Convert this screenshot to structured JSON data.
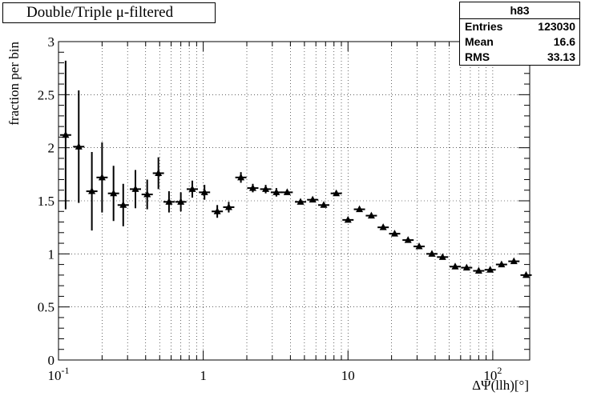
{
  "chart_data": {
    "type": "scatter",
    "title": "Double/Triple μ-filtered",
    "xlabel": "ΔΨ(llh)[°]",
    "ylabel": "fraction per bin",
    "xscale": "log",
    "xlim": [
      0.1,
      180
    ],
    "ylim": [
      0,
      3
    ],
    "grid": true,
    "marker": "filled-triangle",
    "x_ticks": [
      "10",
      "1",
      "10",
      "10"
    ],
    "x_tick_exponents": [
      "-1",
      "",
      "",
      "2"
    ],
    "y_ticks": [
      "0",
      "0.5",
      "1",
      "1.5",
      "2",
      "2.5",
      "3"
    ],
    "series": [
      {
        "x": [
          0.112,
          0.138,
          0.17,
          0.2,
          0.24,
          0.28,
          0.34,
          0.41,
          0.49,
          0.58,
          0.7,
          0.84,
          1.02,
          1.25,
          1.5,
          1.82,
          2.2,
          2.7,
          3.2,
          3.8,
          4.7,
          5.7,
          6.8,
          8.3,
          10,
          12,
          14.5,
          17.5,
          21,
          26,
          31,
          38,
          45,
          55,
          66,
          80,
          96,
          115,
          140,
          170
        ],
        "y": [
          2.12,
          2.01,
          1.59,
          1.72,
          1.57,
          1.46,
          1.61,
          1.56,
          1.76,
          1.49,
          1.49,
          1.61,
          1.58,
          1.4,
          1.44,
          1.72,
          1.62,
          1.61,
          1.58,
          1.58,
          1.49,
          1.51,
          1.46,
          1.57,
          1.32,
          1.42,
          1.36,
          1.25,
          1.19,
          1.13,
          1.07,
          1.0,
          0.97,
          0.88,
          0.87,
          0.84,
          0.85,
          0.9,
          0.93,
          0.8
        ],
        "yerr": [
          0.7,
          0.53,
          0.37,
          0.33,
          0.26,
          0.2,
          0.18,
          0.14,
          0.15,
          0.1,
          0.09,
          0.08,
          0.07,
          0.06,
          0.05,
          0.05,
          0.04,
          0.04,
          0.04,
          0.03,
          0.03,
          0.03,
          0.03,
          0.03,
          0.02,
          0.02,
          0.02,
          0.02,
          0.02,
          0.02,
          0.02,
          0.01,
          0.01,
          0.01,
          0.01,
          0.01,
          0.01,
          0.01,
          0.01,
          0.01
        ]
      }
    ]
  },
  "stats_box": {
    "name": "h83",
    "rows": [
      {
        "label": "Entries",
        "value": "123030"
      },
      {
        "label": "Mean",
        "value": "16.6"
      },
      {
        "label": "RMS",
        "value": "33.13"
      }
    ]
  }
}
